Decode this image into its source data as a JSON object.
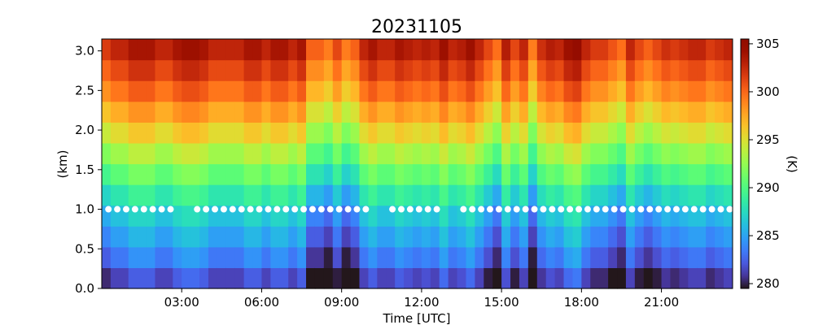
{
  "chart_data": {
    "type": "heatmap",
    "title": "20231105",
    "xlabel": "Time [UTC]",
    "ylabel": "(km)",
    "colorbar_label": "(K)",
    "colormap": "turbo",
    "xlim_hours": [
      0,
      23.67
    ],
    "ylim": [
      0,
      3.15
    ],
    "color_range": [
      279.5,
      305.5
    ],
    "x_ticks": [
      {
        "hour": 3,
        "label": "03:00"
      },
      {
        "hour": 6,
        "label": "06:00"
      },
      {
        "hour": 9,
        "label": "09:00"
      },
      {
        "hour": 12,
        "label": "12:00"
      },
      {
        "hour": 15,
        "label": "15:00"
      },
      {
        "hour": 18,
        "label": "18:00"
      },
      {
        "hour": 21,
        "label": "21:00"
      }
    ],
    "y_ticks": [
      {
        "value": 0.0,
        "label": "0.0"
      },
      {
        "value": 0.5,
        "label": "0.5"
      },
      {
        "value": 1.0,
        "label": "1.0"
      },
      {
        "value": 1.5,
        "label": "1.5"
      },
      {
        "value": 2.0,
        "label": "2.0"
      },
      {
        "value": 2.5,
        "label": "2.5"
      },
      {
        "value": 3.0,
        "label": "3.0"
      }
    ],
    "colorbar_ticks": [
      {
        "value": 280,
        "label": "280"
      },
      {
        "value": 285,
        "label": "285"
      },
      {
        "value": 290,
        "label": "290"
      },
      {
        "value": 295,
        "label": "295"
      },
      {
        "value": 300,
        "label": "300"
      },
      {
        "value": 305,
        "label": "305"
      }
    ],
    "columns_per_hour": 3,
    "column_top_temperature_k": [
      302.5,
      303.5,
      303.5,
      304.5,
      304.5,
      304.5,
      303.5,
      303.5,
      304.5,
      305,
      305,
      304.5,
      303.5,
      303.5,
      303.5,
      303.5,
      304.5,
      304.5,
      303.5,
      304.5,
      304.5,
      303.5,
      304.5,
      301,
      301,
      300,
      302,
      300,
      301,
      303.5,
      304.5,
      303.5,
      303.5,
      304.5,
      304,
      303.5,
      304,
      303.5,
      305,
      303.5,
      304,
      305,
      303.5,
      302,
      300.5,
      304,
      302,
      303.5,
      300,
      303,
      304,
      303.5,
      305,
      305.5,
      303.5,
      302.5,
      302.5,
      301.5,
      300.5,
      303.5,
      302,
      301,
      302,
      303,
      302.5,
      303,
      303.5,
      303.5,
      302.5,
      303,
      303.5
    ],
    "profile_shape": [
      {
        "km": 0.0,
        "dT_k": -7.0
      },
      {
        "km": 0.2,
        "dT_k": -5.0
      },
      {
        "km": 0.5,
        "dT_k": -3.0
      },
      {
        "km": 0.8,
        "dT_k": -1.5
      },
      {
        "km": 1.05,
        "dT_k": 0.0
      },
      {
        "km": 1.5,
        "dT_k": 4.0
      },
      {
        "km": 2.0,
        "dT_k": 8.5
      },
      {
        "km": 2.5,
        "dT_k": 12.5
      },
      {
        "km": 3.15,
        "dT_k": 16.5
      }
    ],
    "boundary_layer_height_km": 1.0,
    "boundary_layer_marker_color": "#ffffff",
    "boundary_layer_gaps_hours": [
      [
        2.7,
        3.25
      ],
      [
        10.0,
        10.6
      ],
      [
        12.9,
        13.5
      ]
    ],
    "boundary_layer_marker_spacing_hours": 0.333
  }
}
